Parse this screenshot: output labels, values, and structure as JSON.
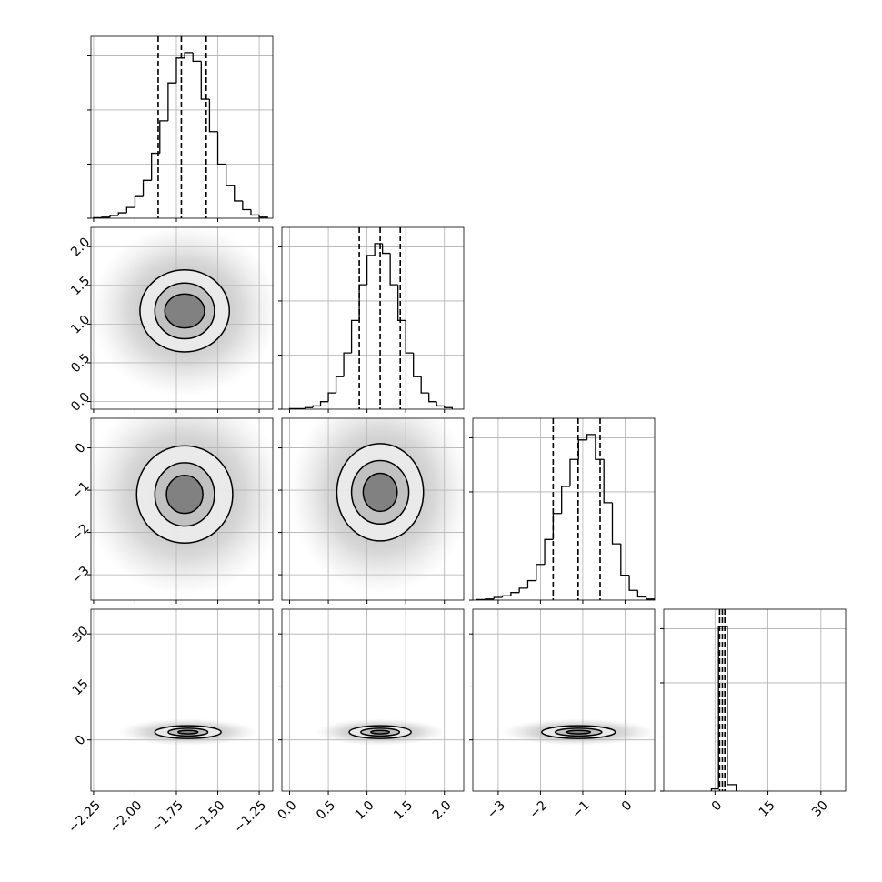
{
  "axes": [
    {
      "lim": [
        -2.266,
        -1.168
      ],
      "ticks": [
        {
          "value": -2.25,
          "label": "−2.25"
        },
        {
          "value": -2.0,
          "label": "−2.00"
        },
        {
          "value": -1.75,
          "label": "−1.75"
        },
        {
          "value": -1.5,
          "label": "−1.50"
        },
        {
          "value": -1.25,
          "label": "−1.25"
        }
      ]
    },
    {
      "lim": [
        -0.1,
        2.25
      ],
      "ticks": [
        {
          "value": 0,
          "label": "0.0"
        },
        {
          "value": 0.5,
          "label": "0.5"
        },
        {
          "value": 1,
          "label": "1.0"
        },
        {
          "value": 1.5,
          "label": "1.5"
        },
        {
          "value": 2,
          "label": "2.0"
        }
      ]
    },
    {
      "lim": [
        -3.6,
        0.7
      ],
      "ticks": [
        {
          "value": -3,
          "label": "−3"
        },
        {
          "value": -2,
          "label": "−2"
        },
        {
          "value": -1,
          "label": "−1"
        },
        0
      ]
    },
    {
      "lim": [
        -14.5,
        37
      ],
      "ticks": [
        0,
        15,
        30
      ]
    }
  ],
  "chart_data": [
    {
      "type": "histogram",
      "param": 0,
      "color": "#000000",
      "ylim": [
        0,
        1680
      ],
      "yticks": [
        0,
        500,
        1000,
        1500
      ],
      "bins": [
        -2.25,
        -2.2,
        -2.15,
        -2.1,
        -2.05,
        -2.0,
        -1.95,
        -1.9,
        -1.85,
        -1.8,
        -1.75,
        -1.7,
        -1.65,
        -1.6,
        -1.55,
        -1.5,
        -1.45,
        -1.4,
        -1.35,
        -1.3,
        -1.25,
        -1.2
      ],
      "values": [
        5,
        10,
        25,
        50,
        100,
        200,
        350,
        600,
        900,
        1250,
        1480,
        1530,
        1450,
        1100,
        800,
        500,
        300,
        160,
        80,
        30,
        10
      ],
      "quantiles": [
        -1.86,
        -1.72,
        -1.57
      ]
    },
    {
      "type": "contour",
      "x_param": 0,
      "y_param": 1,
      "center": [
        -1.7,
        1.17
      ],
      "levels": [
        {
          "rx": 0.27,
          "ry": 0.53
        },
        {
          "rx": 0.18,
          "ry": 0.36
        },
        {
          "rx": 0.12,
          "ry": 0.22
        }
      ]
    },
    {
      "type": "histogram",
      "param": 1,
      "color": "#000000",
      "ylim": [
        0,
        1680
      ],
      "yticks": [
        0,
        500,
        1000,
        1500
      ],
      "bins": [
        0.0,
        0.1,
        0.2,
        0.3,
        0.4,
        0.5,
        0.6,
        0.7,
        0.8,
        0.9,
        1.0,
        1.1,
        1.2,
        1.3,
        1.4,
        1.5,
        1.6,
        1.7,
        1.8,
        1.9,
        2.0,
        2.1
      ],
      "values": [
        5,
        5,
        15,
        30,
        70,
        150,
        300,
        520,
        820,
        1150,
        1420,
        1530,
        1440,
        1150,
        820,
        520,
        300,
        150,
        70,
        30,
        15
      ],
      "quantiles": [
        0.9,
        1.17,
        1.43
      ]
    },
    {
      "type": "contour",
      "x_param": 0,
      "y_param": 2,
      "center": [
        -1.7,
        -1.1
      ],
      "levels": [
        {
          "rx": 0.29,
          "ry": 1.15
        },
        {
          "rx": 0.18,
          "ry": 0.75
        },
        {
          "rx": 0.11,
          "ry": 0.45
        }
      ]
    },
    {
      "type": "contour",
      "x_param": 1,
      "y_param": 2,
      "center": [
        1.17,
        -1.05
      ],
      "levels": [
        {
          "rx": 0.56,
          "ry": 1.15
        },
        {
          "rx": 0.37,
          "ry": 0.75
        },
        {
          "rx": 0.22,
          "ry": 0.45
        }
      ]
    },
    {
      "type": "histogram",
      "param": 2,
      "color": "#000000",
      "ylim": [
        0,
        1680
      ],
      "yticks": [
        0,
        500,
        1000,
        1500
      ],
      "bins": [
        -3.5,
        -3.3,
        -3.1,
        -2.9,
        -2.7,
        -2.5,
        -2.3,
        -2.1,
        -1.9,
        -1.7,
        -1.5,
        -1.3,
        -1.1,
        -0.9,
        -0.7,
        -0.5,
        -0.3,
        -0.1,
        0.1,
        0.3,
        0.5,
        0.7
      ],
      "values": [
        5,
        10,
        25,
        40,
        70,
        110,
        180,
        330,
        560,
        800,
        1050,
        1300,
        1480,
        1530,
        1300,
        900,
        520,
        230,
        90,
        30,
        10
      ],
      "quantiles": [
        -1.7,
        -1.11,
        -0.59
      ]
    },
    {
      "type": "contour",
      "x_param": 0,
      "y_param": 3,
      "center": [
        -1.68,
        2.2
      ],
      "levels": [
        {
          "rx": 0.2,
          "ry": 1.8
        },
        {
          "rx": 0.12,
          "ry": 1.1
        },
        {
          "rx": 0.06,
          "ry": 0.5
        }
      ]
    },
    {
      "type": "contour",
      "x_param": 1,
      "y_param": 3,
      "center": [
        1.17,
        2.2
      ],
      "levels": [
        {
          "rx": 0.4,
          "ry": 1.8
        },
        {
          "rx": 0.25,
          "ry": 1.1
        },
        {
          "rx": 0.12,
          "ry": 0.5
        }
      ]
    },
    {
      "type": "contour",
      "x_param": 2,
      "y_param": 3,
      "center": [
        -1.1,
        2.2
      ],
      "levels": [
        {
          "rx": 0.87,
          "ry": 1.8
        },
        {
          "rx": 0.55,
          "ry": 1.1
        },
        {
          "rx": 0.28,
          "ry": 0.5
        }
      ]
    },
    {
      "type": "histogram",
      "param": 3,
      "color": "#000000",
      "ylim": [
        0,
        1680
      ],
      "yticks": [
        0,
        500,
        1000,
        1500
      ],
      "bins": [
        -1,
        1,
        3.5,
        6
      ],
      "values": [
        20,
        1520,
        60
      ],
      "quantiles": [
        1.32,
        2.1,
        2.8
      ]
    }
  ]
}
